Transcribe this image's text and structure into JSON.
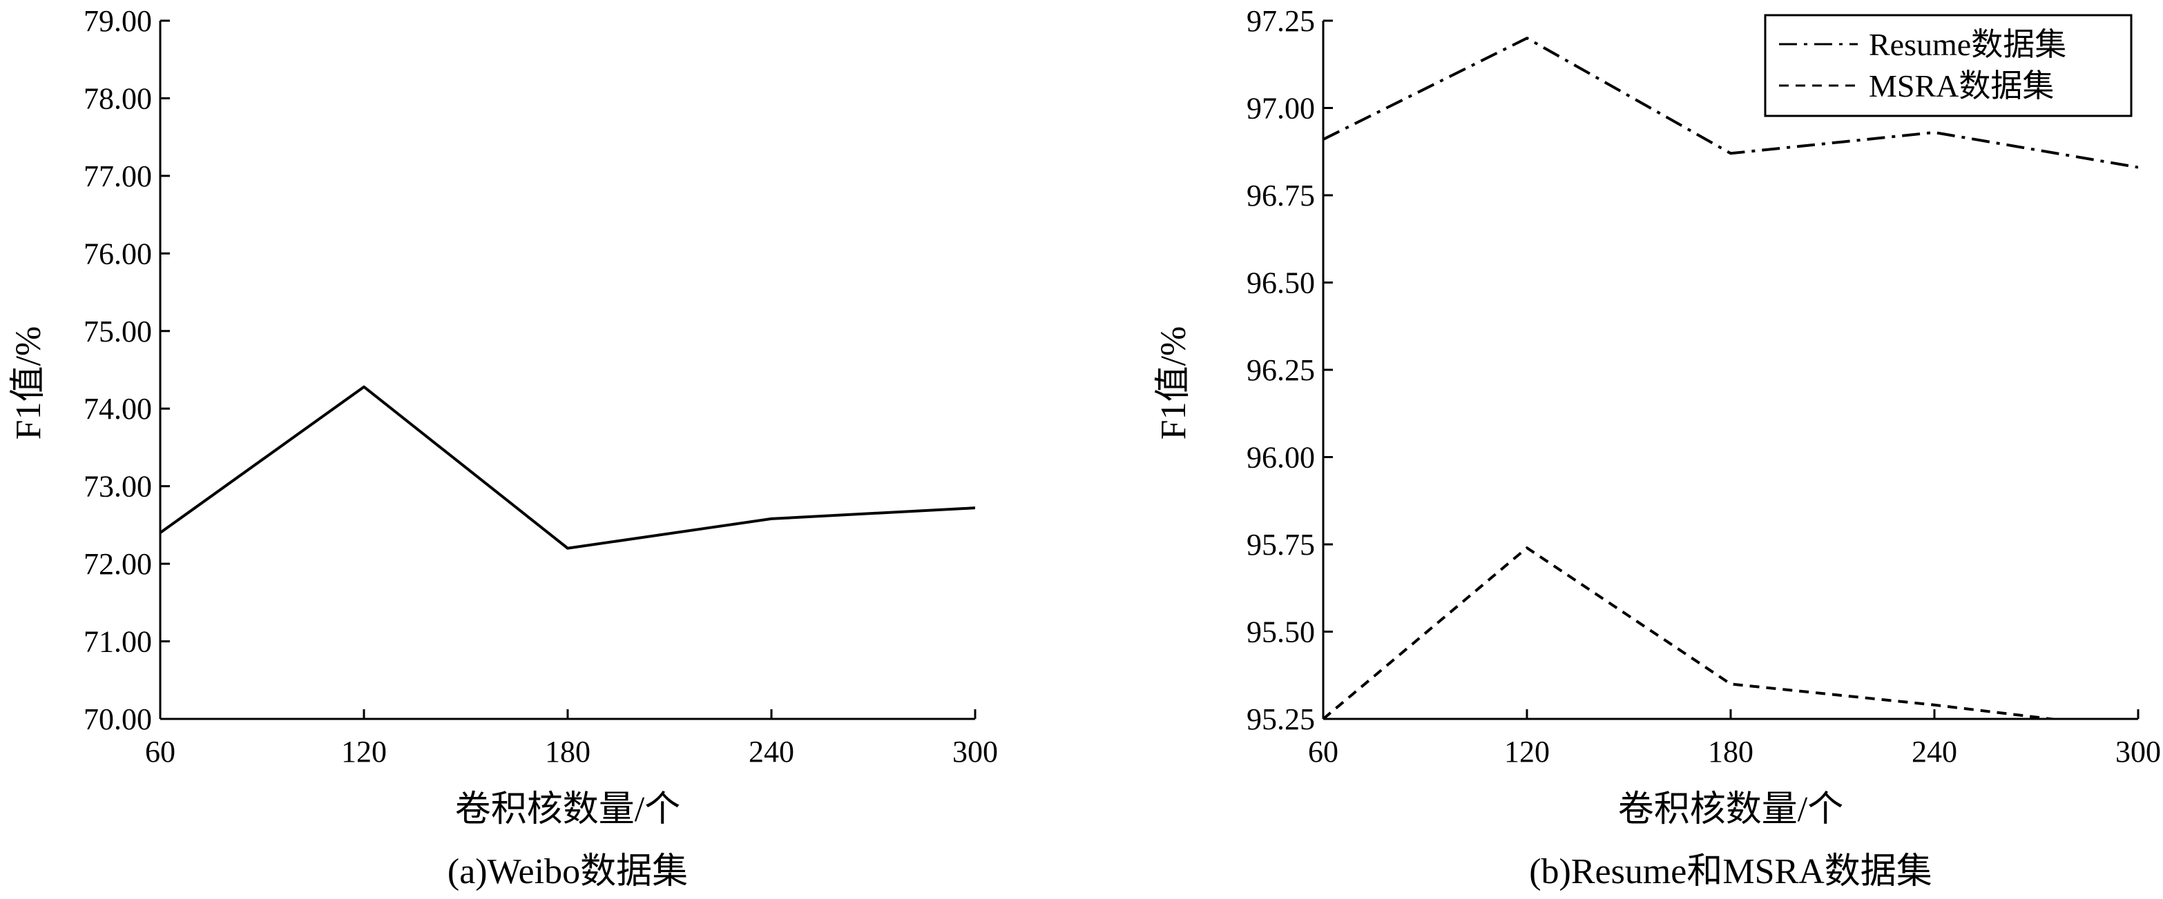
{
  "chart_data": [
    {
      "type": "line",
      "caption": "(a)Weibo数据集",
      "xlabel": "卷积核数量/个",
      "ylabel": "F1值/%",
      "x": [
        60,
        120,
        180,
        240,
        300
      ],
      "xlim": [
        60,
        300
      ],
      "ylim": [
        70,
        79
      ],
      "yticks": [
        "70.00",
        "71.00",
        "72.00",
        "73.00",
        "74.00",
        "75.00",
        "76.00",
        "77.00",
        "78.00",
        "79.00"
      ],
      "xticks": [
        "60",
        "120",
        "180",
        "240",
        "300"
      ],
      "grid": false,
      "series": [
        {
          "values": [
            72.4,
            74.28,
            72.2,
            72.58,
            72.72
          ],
          "style": "solid",
          "color": "#000000"
        }
      ]
    },
    {
      "type": "line",
      "caption": "(b)Resume和MSRA数据集",
      "xlabel": "卷积核数量/个",
      "ylabel": "F1值/%",
      "x": [
        60,
        120,
        180,
        240,
        300
      ],
      "xlim": [
        60,
        300
      ],
      "ylim": [
        95.25,
        97.25
      ],
      "yticks": [
        "95.25",
        "95.50",
        "95.75",
        "96.00",
        "96.25",
        "96.50",
        "96.75",
        "97.00",
        "97.25"
      ],
      "xticks": [
        "60",
        "120",
        "180",
        "240",
        "300"
      ],
      "grid": false,
      "legend": "top-right",
      "series": [
        {
          "name": "Resume数据集",
          "values": [
            96.91,
            97.2,
            96.87,
            96.93,
            96.83
          ],
          "style": "dashdot",
          "color": "#000000"
        },
        {
          "name": "MSRA数据集",
          "values": [
            95.25,
            95.74,
            95.35,
            95.29,
            95.22
          ],
          "style": "dashed",
          "color": "#000000"
        }
      ]
    }
  ]
}
